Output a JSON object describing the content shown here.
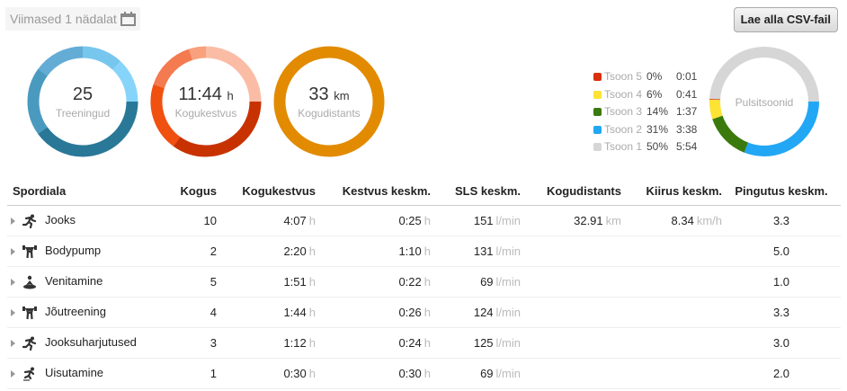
{
  "header": {
    "period_label": "Viimased 1 nädalat",
    "csv_button": "Lae alla CSV-fail"
  },
  "summary": [
    {
      "value": "25",
      "unit": "",
      "label": "Treeningud",
      "segments": [
        [
          0.12,
          "#77c6ee"
        ],
        [
          0.13,
          "#87d4fa"
        ],
        [
          0.4,
          "#2a7898"
        ],
        [
          0.2,
          "#4a9ac0"
        ],
        [
          0.15,
          "#63acd6"
        ]
      ]
    },
    {
      "value": "11:44",
      "unit": "h",
      "label": "Kogukestvus",
      "segments": [
        [
          0.12,
          "#fbbca5"
        ],
        [
          0.13,
          "#fbbca5"
        ],
        [
          0.35,
          "#c83200"
        ],
        [
          0.2,
          "#f05010"
        ],
        [
          0.15,
          "#f47a50"
        ],
        [
          0.05,
          "#f9a07c"
        ]
      ]
    },
    {
      "value": "33",
      "unit": "km",
      "label": "Kogudistants",
      "segments": [
        [
          1,
          "#e28b00"
        ]
      ]
    }
  ],
  "zones": {
    "title": "Pulsitsoonid",
    "items": [
      {
        "label": "Tsoon 5",
        "pct": "0%",
        "time": "0:01",
        "color": "#d9300e",
        "fraction": 0.002
      },
      {
        "label": "Tsoon 4",
        "pct": "6%",
        "time": "0:41",
        "color": "#fde334",
        "fraction": 0.058
      },
      {
        "label": "Tsoon 3",
        "pct": "14%",
        "time": "1:37",
        "color": "#3a7a0c",
        "fraction": 0.138
      },
      {
        "label": "Tsoon 2",
        "pct": "31%",
        "time": "3:38",
        "color": "#22a7f5",
        "fraction": 0.31
      },
      {
        "label": "Tsoon 1",
        "pct": "50%",
        "time": "5:54",
        "color": "#d6d6d6",
        "fraction": 0.5
      }
    ]
  },
  "table": {
    "headers": [
      "Spordiala",
      "Kogus",
      "Kogukestvus",
      "Kestvus keskm.",
      "SLS keskm.",
      "Kogudistants",
      "Kiirus keskm.",
      "Pingutus keskm."
    ],
    "units": {
      "h": "h",
      "lmin": "l/min",
      "km": "km",
      "kmh": "km/h"
    },
    "rows": [
      {
        "icon": "run",
        "name": "Jooks",
        "count": "10",
        "total": "4:07",
        "avg": "0:25",
        "hr": "151",
        "dist": "32.91",
        "speed": "8.34",
        "effort": "3.3"
      },
      {
        "icon": "weights",
        "name": "Bodypump",
        "count": "2",
        "total": "2:20",
        "avg": "1:10",
        "hr": "131",
        "dist": "",
        "speed": "",
        "effort": "5.0"
      },
      {
        "icon": "yoga",
        "name": "Venitamine",
        "count": "5",
        "total": "1:51",
        "avg": "0:22",
        "hr": "69",
        "dist": "",
        "speed": "",
        "effort": "1.0"
      },
      {
        "icon": "weights",
        "name": "Jõutreening",
        "count": "4",
        "total": "1:44",
        "avg": "0:26",
        "hr": "124",
        "dist": "",
        "speed": "",
        "effort": "3.3"
      },
      {
        "icon": "run",
        "name": "Jooksuharjutused",
        "count": "3",
        "total": "1:12",
        "avg": "0:24",
        "hr": "125",
        "dist": "",
        "speed": "",
        "effort": "3.0"
      },
      {
        "icon": "skate",
        "name": "Uisutamine",
        "count": "1",
        "total": "0:30",
        "avg": "0:30",
        "hr": "69",
        "dist": "",
        "speed": "",
        "effort": "2.0"
      }
    ]
  }
}
